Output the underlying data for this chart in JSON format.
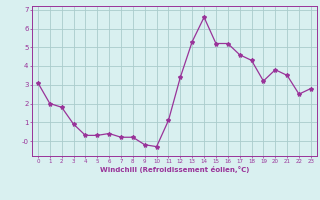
{
  "x": [
    0,
    1,
    2,
    3,
    4,
    5,
    6,
    7,
    8,
    9,
    10,
    11,
    12,
    13,
    14,
    15,
    16,
    17,
    18,
    19,
    20,
    21,
    22,
    23
  ],
  "y": [
    3.1,
    2.0,
    1.8,
    0.9,
    0.3,
    0.3,
    0.4,
    0.2,
    0.2,
    -0.2,
    -0.3,
    1.1,
    3.4,
    5.3,
    6.6,
    5.2,
    5.2,
    4.6,
    4.3,
    3.2,
    3.8,
    3.5,
    2.5,
    2.8
  ],
  "line_color": "#993399",
  "marker": "*",
  "marker_size": 3,
  "bg_color": "#d9f0f0",
  "grid_color": "#aacccc",
  "axis_color": "#993399",
  "xlabel": "Windchill (Refroidissement éolien,°C)",
  "ylim": [
    -0.8,
    7.2
  ],
  "xlim": [
    -0.5,
    23.5
  ],
  "yticks": [
    0,
    1,
    2,
    3,
    4,
    5,
    6,
    7
  ],
  "ytick_labels": [
    "-0",
    "1",
    "2",
    "3",
    "4",
    "5",
    "6",
    "7"
  ],
  "xticks": [
    0,
    1,
    2,
    3,
    4,
    5,
    6,
    7,
    8,
    9,
    10,
    11,
    12,
    13,
    14,
    15,
    16,
    17,
    18,
    19,
    20,
    21,
    22,
    23
  ]
}
